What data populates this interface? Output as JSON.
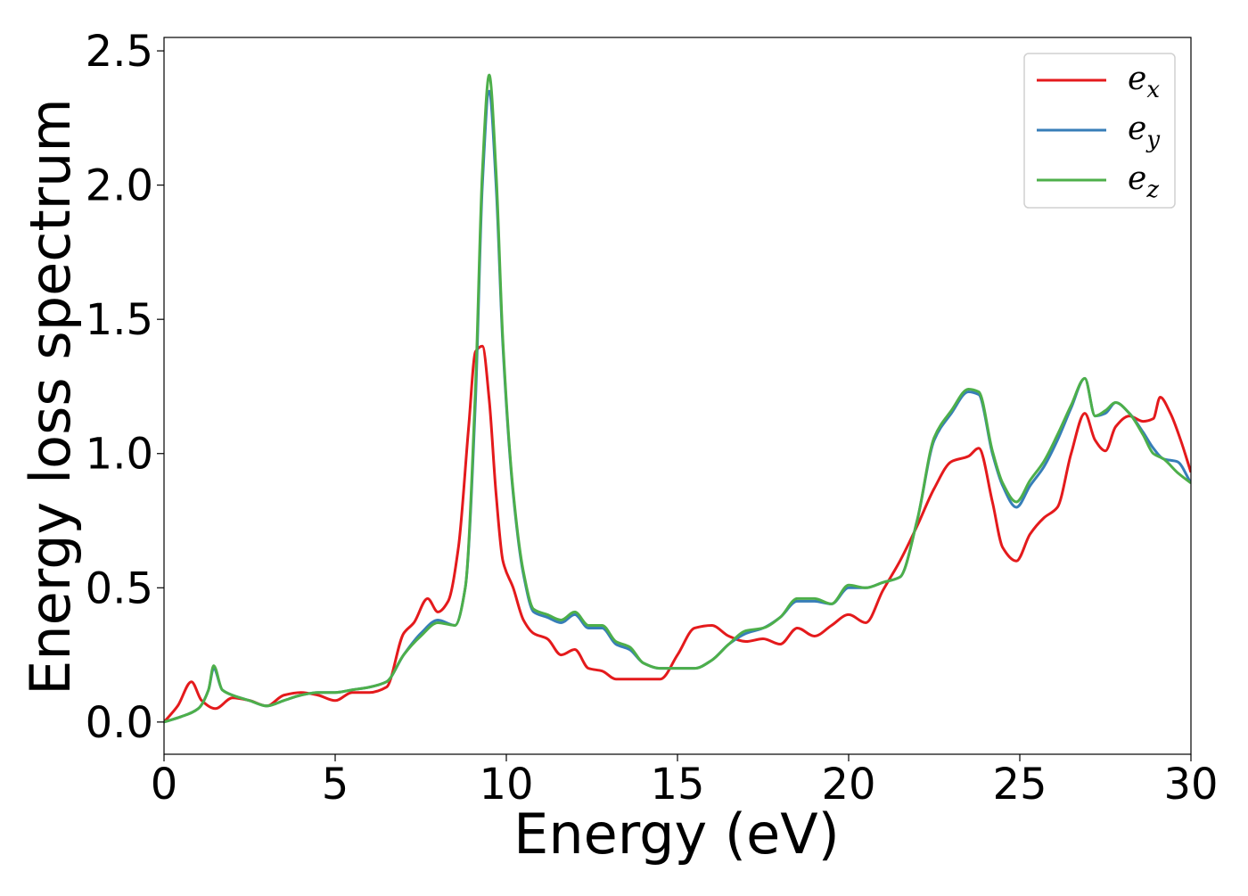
{
  "chart_data": {
    "type": "line",
    "title": "",
    "xlabel": "Energy (eV)",
    "ylabel": "Energy loss spectrum",
    "xlim": [
      0,
      30
    ],
    "ylim": [
      -0.12,
      2.55
    ],
    "xticks": [
      0,
      5,
      10,
      15,
      20,
      25,
      30
    ],
    "xtick_labels": [
      "0",
      "5",
      "10",
      "15",
      "20",
      "25",
      "30"
    ],
    "yticks": [
      0.0,
      0.5,
      1.0,
      1.5,
      2.0,
      2.5
    ],
    "ytick_labels": [
      "0.0",
      "0.5",
      "1.0",
      "1.5",
      "2.0",
      "2.5"
    ],
    "grid": false,
    "legend_position": "top-right",
    "series": [
      {
        "name": "e_x",
        "legend_base": "e",
        "legend_sub": "x",
        "color": "#e41a1c",
        "x": [
          0,
          0.4,
          0.8,
          1.1,
          1.5,
          2.0,
          2.5,
          3.0,
          3.5,
          4.0,
          4.5,
          5.0,
          5.5,
          6.0,
          6.5,
          7.0,
          7.3,
          7.7,
          8.0,
          8.3,
          8.6,
          8.9,
          9.1,
          9.3,
          9.5,
          9.7,
          9.9,
          10.2,
          10.5,
          10.8,
          11.2,
          11.6,
          12.0,
          12.4,
          12.8,
          13.2,
          13.6,
          14.0,
          14.5,
          15.0,
          15.5,
          16.0,
          16.5,
          17.0,
          17.5,
          18.0,
          18.5,
          19.0,
          19.5,
          20.0,
          20.5,
          21.0,
          21.5,
          22.0,
          22.5,
          23.0,
          23.5,
          23.8,
          24.2,
          24.5,
          24.9,
          25.3,
          25.7,
          26.1,
          26.5,
          26.9,
          27.2,
          27.5,
          27.8,
          28.2,
          28.6,
          28.9,
          29.1,
          29.4,
          29.7,
          30.0
        ],
        "y": [
          0.0,
          0.06,
          0.15,
          0.08,
          0.05,
          0.09,
          0.08,
          0.06,
          0.1,
          0.11,
          0.1,
          0.08,
          0.11,
          0.11,
          0.13,
          0.33,
          0.37,
          0.46,
          0.41,
          0.45,
          0.65,
          1.1,
          1.38,
          1.4,
          1.2,
          0.85,
          0.6,
          0.5,
          0.38,
          0.33,
          0.31,
          0.25,
          0.27,
          0.2,
          0.19,
          0.16,
          0.16,
          0.16,
          0.16,
          0.25,
          0.35,
          0.36,
          0.32,
          0.3,
          0.31,
          0.29,
          0.35,
          0.32,
          0.36,
          0.4,
          0.37,
          0.49,
          0.6,
          0.73,
          0.87,
          0.97,
          0.99,
          1.02,
          0.82,
          0.65,
          0.6,
          0.7,
          0.76,
          0.8,
          1.0,
          1.15,
          1.05,
          1.01,
          1.1,
          1.14,
          1.12,
          1.13,
          1.21,
          1.15,
          1.05,
          0.93
        ]
      },
      {
        "name": "e_y",
        "legend_base": "e",
        "legend_sub": "y",
        "color": "#377eb8",
        "x": [
          0,
          0.5,
          1.0,
          1.3,
          1.45,
          1.7,
          2.0,
          2.5,
          3.0,
          3.5,
          4.0,
          4.5,
          5.0,
          5.5,
          6.0,
          6.5,
          7.0,
          7.5,
          8.0,
          8.5,
          8.8,
          9.1,
          9.3,
          9.5,
          9.7,
          9.9,
          10.2,
          10.5,
          10.8,
          11.2,
          11.6,
          12.0,
          12.4,
          12.8,
          13.2,
          13.6,
          14.0,
          14.5,
          15.0,
          15.5,
          16.0,
          16.5,
          17.0,
          17.5,
          18.0,
          18.5,
          19.0,
          19.5,
          20.0,
          20.5,
          21.0,
          21.5,
          22.0,
          22.5,
          23.0,
          23.5,
          23.8,
          24.2,
          24.5,
          24.9,
          25.3,
          25.7,
          26.1,
          26.5,
          26.9,
          27.2,
          27.5,
          27.8,
          28.2,
          28.6,
          28.9,
          29.2,
          29.6,
          30.0
        ],
        "y": [
          0.0,
          0.02,
          0.05,
          0.12,
          0.2,
          0.12,
          0.1,
          0.08,
          0.06,
          0.08,
          0.1,
          0.11,
          0.11,
          0.12,
          0.13,
          0.15,
          0.25,
          0.33,
          0.38,
          0.36,
          0.5,
          1.2,
          2.0,
          2.35,
          2.0,
          1.4,
          0.85,
          0.55,
          0.41,
          0.39,
          0.37,
          0.4,
          0.35,
          0.35,
          0.29,
          0.27,
          0.22,
          0.2,
          0.2,
          0.2,
          0.23,
          0.29,
          0.33,
          0.35,
          0.39,
          0.45,
          0.45,
          0.44,
          0.5,
          0.5,
          0.52,
          0.54,
          0.75,
          1.05,
          1.15,
          1.23,
          1.22,
          1.0,
          0.88,
          0.8,
          0.88,
          0.95,
          1.05,
          1.17,
          1.28,
          1.14,
          1.15,
          1.19,
          1.15,
          1.08,
          1.02,
          0.98,
          0.97,
          0.89
        ]
      },
      {
        "name": "e_z",
        "legend_base": "e",
        "legend_sub": "z",
        "color": "#4daf4a",
        "x": [
          0,
          0.5,
          1.0,
          1.3,
          1.45,
          1.7,
          2.0,
          2.5,
          3.0,
          3.5,
          4.0,
          4.5,
          5.0,
          5.5,
          6.0,
          6.5,
          7.0,
          7.5,
          8.0,
          8.5,
          8.8,
          9.1,
          9.3,
          9.5,
          9.7,
          9.9,
          10.2,
          10.5,
          10.8,
          11.2,
          11.6,
          12.0,
          12.4,
          12.8,
          13.2,
          13.6,
          14.0,
          14.5,
          15.0,
          15.5,
          16.0,
          16.5,
          17.0,
          17.5,
          18.0,
          18.5,
          19.0,
          19.5,
          20.0,
          20.5,
          21.0,
          21.5,
          22.0,
          22.5,
          23.0,
          23.5,
          23.8,
          24.2,
          24.5,
          24.9,
          25.3,
          25.7,
          26.1,
          26.5,
          26.9,
          27.2,
          27.5,
          27.8,
          28.2,
          28.6,
          28.9,
          29.2,
          29.6,
          30.0
        ],
        "y": [
          0.0,
          0.02,
          0.05,
          0.12,
          0.21,
          0.12,
          0.1,
          0.08,
          0.06,
          0.08,
          0.1,
          0.11,
          0.11,
          0.12,
          0.13,
          0.15,
          0.25,
          0.32,
          0.37,
          0.36,
          0.5,
          1.25,
          2.05,
          2.41,
          2.05,
          1.42,
          0.86,
          0.56,
          0.42,
          0.4,
          0.38,
          0.41,
          0.36,
          0.36,
          0.3,
          0.28,
          0.22,
          0.2,
          0.2,
          0.2,
          0.23,
          0.29,
          0.34,
          0.35,
          0.39,
          0.46,
          0.46,
          0.44,
          0.51,
          0.5,
          0.52,
          0.54,
          0.75,
          1.06,
          1.16,
          1.24,
          1.23,
          1.01,
          0.89,
          0.82,
          0.9,
          0.97,
          1.07,
          1.18,
          1.28,
          1.14,
          1.16,
          1.19,
          1.15,
          1.07,
          1.0,
          0.98,
          0.93,
          0.89
        ]
      }
    ]
  }
}
